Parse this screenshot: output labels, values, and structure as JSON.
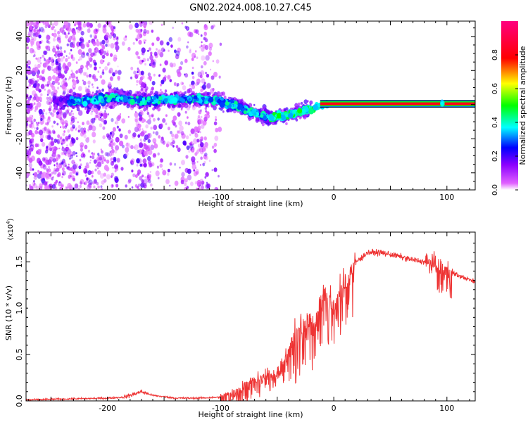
{
  "page_title": "GN02.2024.008.10.27.C45",
  "chart_data": [
    {
      "type": "heatmap",
      "title": "GN02.2024.008.10.27.C45",
      "xlabel": "Height of straight line (km)",
      "ylabel": "Frequency (Hz)",
      "xlim": [
        -272,
        125
      ],
      "ylim": [
        -50,
        49
      ],
      "x_ticks": [
        -200,
        -100,
        0,
        100
      ],
      "y_ticks": [
        -40,
        -20,
        0,
        20,
        40
      ],
      "grid": false,
      "colorbar": {
        "label": "Normalized spectral amplitude",
        "range": [
          0.0,
          1.0
        ],
        "ticks": [
          0.0,
          0.2,
          0.4,
          0.6,
          0.8
        ],
        "tick_labels": [
          "0.0",
          "0.2",
          "0.4",
          "0.6",
          "0.8"
        ],
        "colors": [
          "#ff00ff",
          "#0000ff",
          "#00ffff",
          "#00ff00",
          "#ffff00",
          "#ff0000",
          "#ff00a0"
        ]
      },
      "ridge": {
        "x": [
          -230,
          -210,
          -190,
          -170,
          -150,
          -130,
          -110,
          -100,
          -90,
          -80,
          -70,
          -60,
          -55,
          -50,
          -40,
          -30,
          -20,
          -10,
          0,
          50,
          100,
          125
        ],
        "y": [
          2,
          3,
          4,
          2,
          3,
          3,
          3,
          2,
          0,
          -2,
          -5,
          -7,
          -8,
          -7,
          -6,
          -4,
          -2,
          0,
          0.5,
          0.5,
          0.5,
          0.5
        ]
      }
    },
    {
      "type": "line",
      "xlabel": "Height of straight line (km)",
      "ylabel": "SNR (10 * v/v)",
      "y_multiplier": "(x10",
      "y_multiplier_exp": "4",
      "y_multiplier_close": ")",
      "xlim": [
        -272,
        125
      ],
      "ylim": [
        0.0,
        1.82
      ],
      "x_ticks": [
        -200,
        -100,
        0,
        100
      ],
      "y_ticks": [
        0.0,
        0.5,
        1.0,
        1.5
      ],
      "y_tick_labels": [
        "0.0",
        "0.5",
        "1.0",
        "1.5"
      ],
      "grid": false,
      "color": "#ee3333",
      "series": [
        {
          "x": [
            -272,
            -240,
            -200,
            -185,
            -175,
            -170,
            -160,
            -140,
            -120,
            -100,
            -90,
            -80,
            -70,
            -60,
            -50,
            -45,
            -40,
            -35,
            -30,
            -25,
            -20,
            -15,
            -10,
            -8,
            -5,
            0,
            10,
            20,
            30,
            40,
            50,
            60,
            70,
            80,
            90,
            95,
            100,
            105,
            110,
            115,
            125
          ],
          "y": [
            0.01,
            0.02,
            0.03,
            0.04,
            0.08,
            0.1,
            0.06,
            0.03,
            0.03,
            0.04,
            0.08,
            0.15,
            0.22,
            0.26,
            0.3,
            0.4,
            0.55,
            0.7,
            0.8,
            0.85,
            0.85,
            0.9,
            1.1,
            1.25,
            1.1,
            1.0,
            1.3,
            1.5,
            1.6,
            1.6,
            1.58,
            1.55,
            1.52,
            1.5,
            1.47,
            1.45,
            1.4,
            1.38,
            1.35,
            1.33,
            1.28
          ]
        }
      ]
    }
  ]
}
